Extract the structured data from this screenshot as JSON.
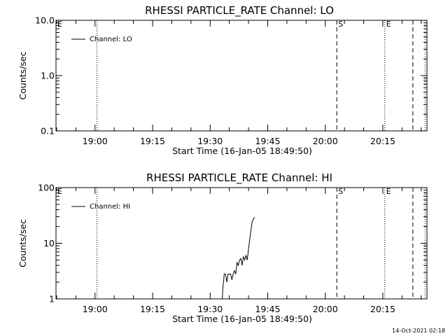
{
  "chart_data": [
    {
      "type": "line",
      "title": "RHESSI PARTICLE_RATE Channel: LO",
      "xlabel": "Start Time (16-Jan-05 18:49:50)",
      "ylabel": "Counts/sec",
      "y_scale": "log",
      "ylim": [
        0.1,
        10.0
      ],
      "yticks": [
        0.1,
        1.0,
        10.0
      ],
      "ytick_labels": [
        "0.1",
        "1.0",
        "10.0"
      ],
      "xlim": [
        "18:49:50",
        "20:26:30"
      ],
      "xticks": [
        "19:00",
        "19:15",
        "19:30",
        "19:45",
        "20:00",
        "20:15"
      ],
      "legend": {
        "position": "top-left",
        "entries": [
          "Channel: LO"
        ]
      },
      "markers": [
        {
          "label": "E",
          "time": "18:49:50",
          "style": "none"
        },
        {
          "label": "",
          "time": "19:00:30",
          "style": "dotted"
        },
        {
          "label": "S",
          "time": "20:03:00",
          "style": "dashed"
        },
        {
          "label": "E",
          "time": "20:15:30",
          "style": "dotted"
        },
        {
          "label": "",
          "time": "20:22:50",
          "style": "dashed"
        },
        {
          "label": "",
          "time": "20:26:00",
          "style": "dotted"
        }
      ],
      "series": [
        {
          "name": "Channel: LO",
          "points": []
        }
      ]
    },
    {
      "type": "line",
      "title": "RHESSI PARTICLE_RATE Channel: HI",
      "xlabel": "Start Time (16-Jan-05 18:49:50)",
      "ylabel": "Counts/sec",
      "y_scale": "log",
      "ylim": [
        1,
        100
      ],
      "yticks": [
        1,
        10,
        100
      ],
      "ytick_labels": [
        "1",
        "10",
        "100"
      ],
      "xlim": [
        "18:49:50",
        "20:26:30"
      ],
      "xticks": [
        "19:00",
        "19:15",
        "19:30",
        "19:45",
        "20:00",
        "20:15"
      ],
      "legend": {
        "position": "top-left",
        "entries": [
          "Channel: HI"
        ]
      },
      "markers": [
        {
          "label": "E",
          "time": "18:49:50",
          "style": "none"
        },
        {
          "label": "",
          "time": "19:00:30",
          "style": "dotted"
        },
        {
          "label": "S",
          "time": "20:03:00",
          "style": "dashed"
        },
        {
          "label": "E",
          "time": "20:15:30",
          "style": "dotted"
        },
        {
          "label": "",
          "time": "20:22:50",
          "style": "dashed"
        },
        {
          "label": "",
          "time": "20:26:00",
          "style": "dotted"
        }
      ],
      "series": [
        {
          "name": "Channel: HI",
          "points": [
            [
              "19:33:10",
              1.0
            ],
            [
              "19:33:20",
              1.7
            ],
            [
              "19:33:30",
              2.0
            ],
            [
              "19:33:40",
              2.8
            ],
            [
              "19:34:00",
              2.8
            ],
            [
              "19:34:20",
              2.0
            ],
            [
              "19:34:40",
              2.8
            ],
            [
              "19:35:00",
              2.8
            ],
            [
              "19:35:20",
              2.8
            ],
            [
              "19:35:40",
              2.2
            ],
            [
              "19:36:00",
              2.8
            ],
            [
              "19:36:20",
              3.2
            ],
            [
              "19:36:40",
              2.8
            ],
            [
              "19:37:00",
              4.5
            ],
            [
              "19:37:20",
              4.0
            ],
            [
              "19:37:40",
              5.0
            ],
            [
              "19:38:00",
              5.3
            ],
            [
              "19:38:20",
              4.0
            ],
            [
              "19:38:40",
              5.7
            ],
            [
              "19:39:00",
              5.0
            ],
            [
              "19:39:20",
              6.0
            ],
            [
              "19:39:40",
              5.0
            ],
            [
              "19:40:00",
              8.0
            ],
            [
              "19:40:20",
              12.0
            ],
            [
              "19:40:40",
              18.0
            ],
            [
              "19:41:00",
              25.0
            ],
            [
              "19:41:20",
              28.0
            ],
            [
              "19:41:40",
              29.0
            ]
          ]
        }
      ]
    }
  ],
  "footer": {
    "timestamp": "14-Oct-2021 02:18"
  }
}
